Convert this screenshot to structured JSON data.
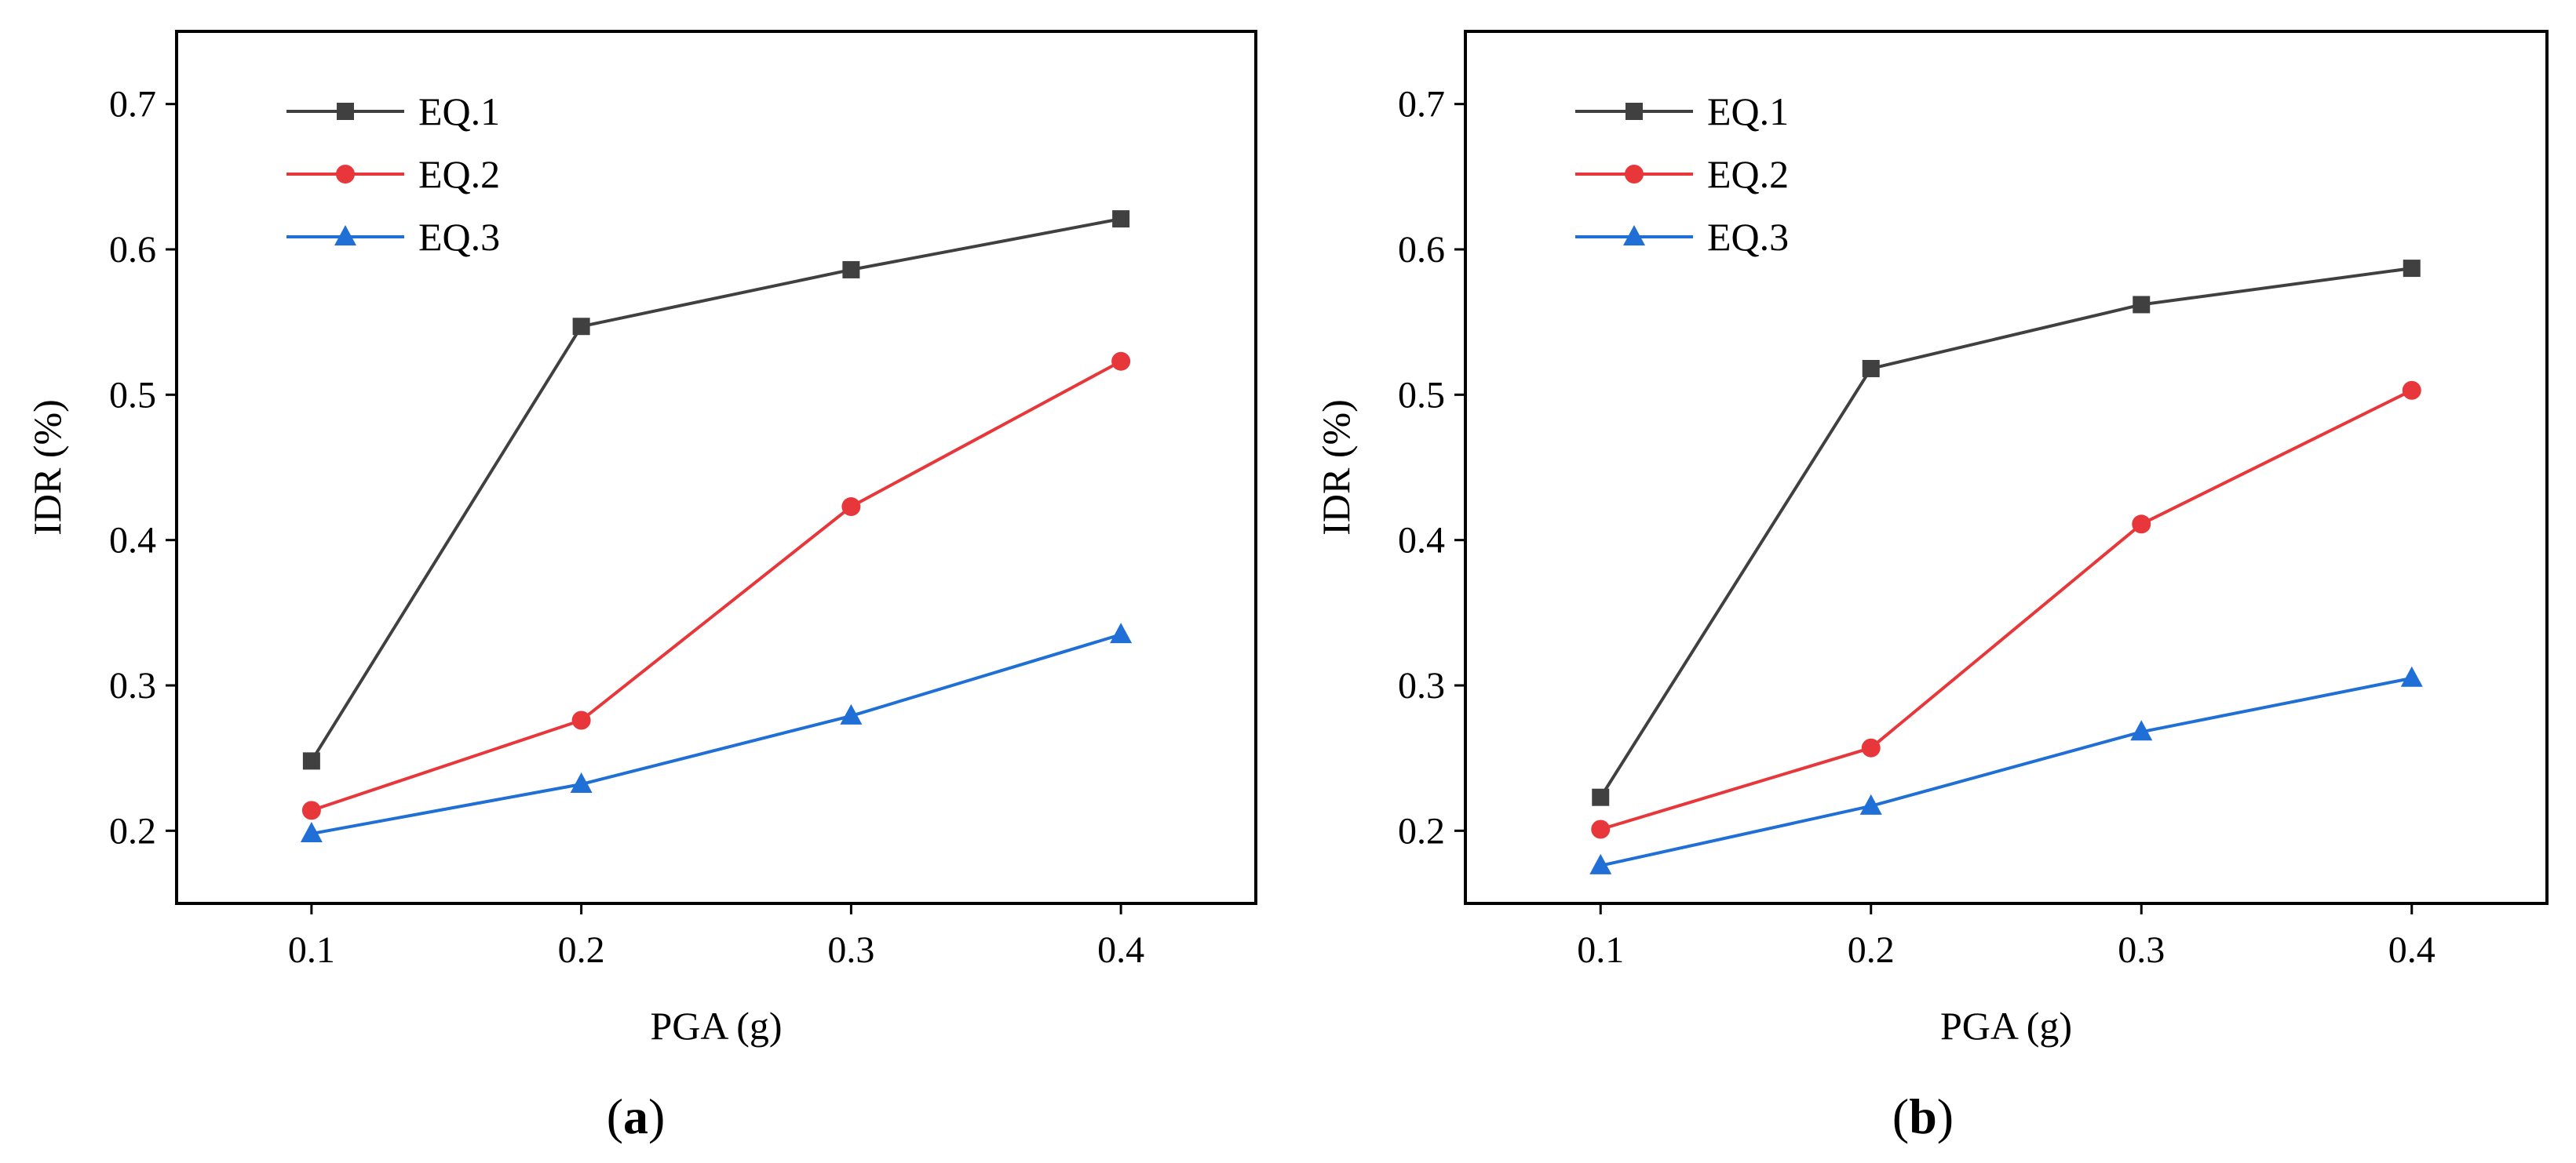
{
  "chart_data": [
    {
      "type": "line",
      "panel": "a",
      "xlabel": "PGA (g)",
      "ylabel": "IDR (%)",
      "xlim": [
        0.05,
        0.45
      ],
      "ylim": [
        0.15,
        0.75
      ],
      "xticks": [
        0.1,
        0.2,
        0.3,
        0.4
      ],
      "yticks": [
        0.2,
        0.3,
        0.4,
        0.5,
        0.6,
        0.7
      ],
      "legend_position": "top-left",
      "x": [
        0.1,
        0.2,
        0.3,
        0.4
      ],
      "series": [
        {
          "name": "EQ.1",
          "color": "#404040",
          "marker": "square",
          "values": [
            0.248,
            0.547,
            0.586,
            0.621
          ]
        },
        {
          "name": "EQ.2",
          "color": "#e8373a",
          "marker": "circle",
          "values": [
            0.214,
            0.276,
            0.423,
            0.523
          ]
        },
        {
          "name": "EQ.3",
          "color": "#1f6fd6",
          "marker": "triangle",
          "values": [
            0.198,
            0.232,
            0.279,
            0.335
          ]
        }
      ]
    },
    {
      "type": "line",
      "panel": "b",
      "xlabel": "PGA (g)",
      "ylabel": "IDR (%)",
      "xlim": [
        0.05,
        0.45
      ],
      "ylim": [
        0.15,
        0.75
      ],
      "xticks": [
        0.1,
        0.2,
        0.3,
        0.4
      ],
      "yticks": [
        0.2,
        0.3,
        0.4,
        0.5,
        0.6,
        0.7
      ],
      "legend_position": "top-left",
      "x": [
        0.1,
        0.2,
        0.3,
        0.4
      ],
      "series": [
        {
          "name": "EQ.1",
          "color": "#404040",
          "marker": "square",
          "values": [
            0.223,
            0.518,
            0.562,
            0.587
          ]
        },
        {
          "name": "EQ.2",
          "color": "#e8373a",
          "marker": "circle",
          "values": [
            0.201,
            0.257,
            0.411,
            0.503
          ]
        },
        {
          "name": "EQ.3",
          "color": "#1f6fd6",
          "marker": "triangle",
          "values": [
            0.176,
            0.217,
            0.268,
            0.305
          ]
        }
      ]
    }
  ]
}
